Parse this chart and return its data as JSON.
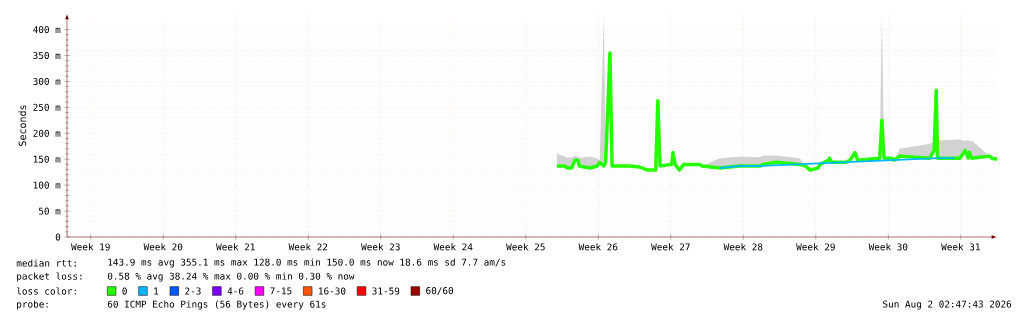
{
  "chart_data": {
    "type": "line",
    "ylabel": "Seconds",
    "legend_title": "loss color:",
    "legend": "bottom",
    "grid": true,
    "xlim": [
      "2026-05-04T08:00",
      "2026-08-02T02:47"
    ],
    "xticks": [
      {
        "value": "2026-05-06T15:00",
        "label": "Week 19"
      },
      {
        "value": "2026-05-13T15:00",
        "label": "Week 20"
      },
      {
        "value": "2026-05-20T15:00",
        "label": "Week 21"
      },
      {
        "value": "2026-05-27T15:00",
        "label": "Week 22"
      },
      {
        "value": "2026-06-03T15:00",
        "label": "Week 23"
      },
      {
        "value": "2026-06-10T15:00",
        "label": "Week 24"
      },
      {
        "value": "2026-06-17T15:00",
        "label": "Week 25"
      },
      {
        "value": "2026-06-24T15:00",
        "label": "Week 26"
      },
      {
        "value": "2026-07-01T15:00",
        "label": "Week 27"
      },
      {
        "value": "2026-07-08T15:00",
        "label": "Week 28"
      },
      {
        "value": "2026-07-15T15:00",
        "label": "Week 29"
      },
      {
        "value": "2026-07-22T15:00",
        "label": "Week 30"
      },
      {
        "value": "2026-07-29T15:00",
        "label": "Week 31"
      }
    ],
    "ylim": [
      0,
      430
    ],
    "yticks": [
      0,
      {
        "value": 50,
        "label": "50 m"
      },
      {
        "value": 100,
        "label": "100 m"
      },
      {
        "value": 150,
        "label": "150 m"
      },
      {
        "value": 200,
        "label": "200 m"
      },
      {
        "value": 250,
        "label": "250 m"
      },
      {
        "value": 300,
        "label": "300 m"
      },
      {
        "value": 350,
        "label": "350 m"
      },
      {
        "value": 400,
        "label": "400 m"
      }
    ],
    "series": [
      {
        "name": "0",
        "color": "#26ff00",
        "x": [
          "2026-06-20T15:00",
          "2026-06-21T10:00",
          "2026-06-21T15:00",
          "2026-06-22T01:00",
          "2026-06-22T09:00",
          "2026-06-22T16:00",
          "2026-06-22T19:00",
          "2026-06-23T19:00",
          "2026-06-24T13:00",
          "2026-06-24T18:00",
          "2026-06-25T04:00",
          "2026-06-25T08:00",
          "2026-06-25T18:00",
          "2026-06-25T23:00",
          "2026-06-27T15:00",
          "2026-06-28T15:00",
          "2026-06-29T09:00",
          "2026-06-30T04:00",
          "2026-06-30T09:00",
          "2026-06-30T14:00",
          "2026-07-01T17:00",
          "2026-07-01T20:00",
          "2026-07-02T01:00",
          "2026-07-02T11:00",
          "2026-07-02T21:00",
          "2026-07-04T10:00",
          "2026-07-04T15:00",
          "2026-07-06T09:00",
          "2026-07-08T07:00",
          "2026-07-10T06:00",
          "2026-07-10T12:00",
          "2026-07-11T19:00",
          "2026-07-14T02:00",
          "2026-07-14T15:00",
          "2026-07-15T02:00",
          "2026-07-15T20:00",
          "2026-07-16T01:00",
          "2026-07-16T20:00",
          "2026-07-16T23:00",
          "2026-07-17T04:00",
          "2026-07-18T12:00",
          "2026-07-18T22:00",
          "2026-07-19T10:00",
          "2026-07-19T16:00",
          "2026-07-21T19:00",
          "2026-07-22T00:00",
          "2026-07-22T05:00",
          "2026-07-22T23:00",
          "2026-07-23T04:00",
          "2026-07-23T18:00",
          "2026-07-26T15:00",
          "2026-07-27T01:00",
          "2026-07-27T06:00",
          "2026-07-27T09:00",
          "2026-07-29T13:00",
          "2026-07-30T01:00",
          "2026-07-30T08:00",
          "2026-07-30T11:00",
          "2026-07-30T16:00",
          "2026-08-01T10:00",
          "2026-08-01T15:00",
          "2026-08-02T02:47"
        ],
        "values": [
          137,
          137,
          133,
          133,
          148,
          148,
          137,
          133,
          137,
          144,
          137,
          144,
          355,
          137,
          137,
          135,
          129,
          129,
          263,
          137,
          140,
          163,
          140,
          129,
          140,
          140,
          137,
          133,
          137,
          137,
          140,
          144,
          140,
          137,
          129,
          133,
          140,
          148,
          152,
          144,
          144,
          148,
          163,
          148,
          152,
          225,
          152,
          152,
          148,
          156,
          152,
          167,
          283,
          152,
          152,
          167,
          152,
          163,
          152,
          156,
          152,
          150
        ],
        "lower": [
          137,
          137,
          133,
          133,
          148,
          148,
          137,
          133,
          137,
          144,
          137,
          144,
          355,
          137,
          137,
          135,
          129,
          129,
          263,
          137,
          140,
          163,
          140,
          129,
          140,
          140,
          137,
          133,
          137,
          137,
          140,
          144,
          140,
          137,
          129,
          133,
          140,
          148,
          152,
          144,
          144,
          148,
          163,
          148,
          152,
          225,
          152,
          152,
          148,
          156,
          152,
          167,
          283,
          152,
          152,
          167,
          152,
          163,
          152,
          156,
          152,
          150
        ],
        "upper": [
          160,
          155,
          153,
          154,
          156,
          155,
          153,
          155,
          152,
          144,
          430,
          144,
          355,
          137,
          137,
          135,
          129,
          129,
          263,
          137,
          140,
          163,
          140,
          129,
          140,
          140,
          137,
          152,
          155,
          154,
          157,
          157,
          152,
          137,
          129,
          133,
          140,
          148,
          152,
          144,
          144,
          148,
          163,
          148,
          152,
          430,
          152,
          152,
          148,
          170,
          180,
          183,
          283,
          186,
          188,
          185,
          187,
          184,
          186,
          156,
          152,
          150
        ]
      },
      {
        "name": "1",
        "color": "#00b8ff",
        "x": [
          "2026-07-06T09:00",
          "2026-07-08T07:00",
          "2026-07-10T06:00",
          "2026-07-27T09:00",
          "2026-07-29T00:00"
        ],
        "values": [
          133,
          137,
          137,
          152,
          152
        ]
      },
      {
        "name": "2-3",
        "color": "#0059ff"
      },
      {
        "name": "4-6",
        "color": "#7e00ff"
      },
      {
        "name": "7-15",
        "color": "#ff00ff"
      },
      {
        "name": "16-30",
        "color": "#ff5500"
      },
      {
        "name": "31-59",
        "color": "#ff0000"
      },
      {
        "name": "60/60",
        "color": "#a00000"
      }
    ],
    "annotations": [
      "median rtt:",
      "143.9 ms avg  355.1 ms max  128.0 ms min  150.0 ms now  18.6 ms sd  7.7   am/s",
      "packet loss:",
      "0.58 % avg  38.24 % max  0.00 % min  0.30 % now",
      "probe:",
      "60 ICMP Echo Pings (56 Bytes) every 61s",
      "Sun Aug  2 02:47:43 2026"
    ]
  }
}
